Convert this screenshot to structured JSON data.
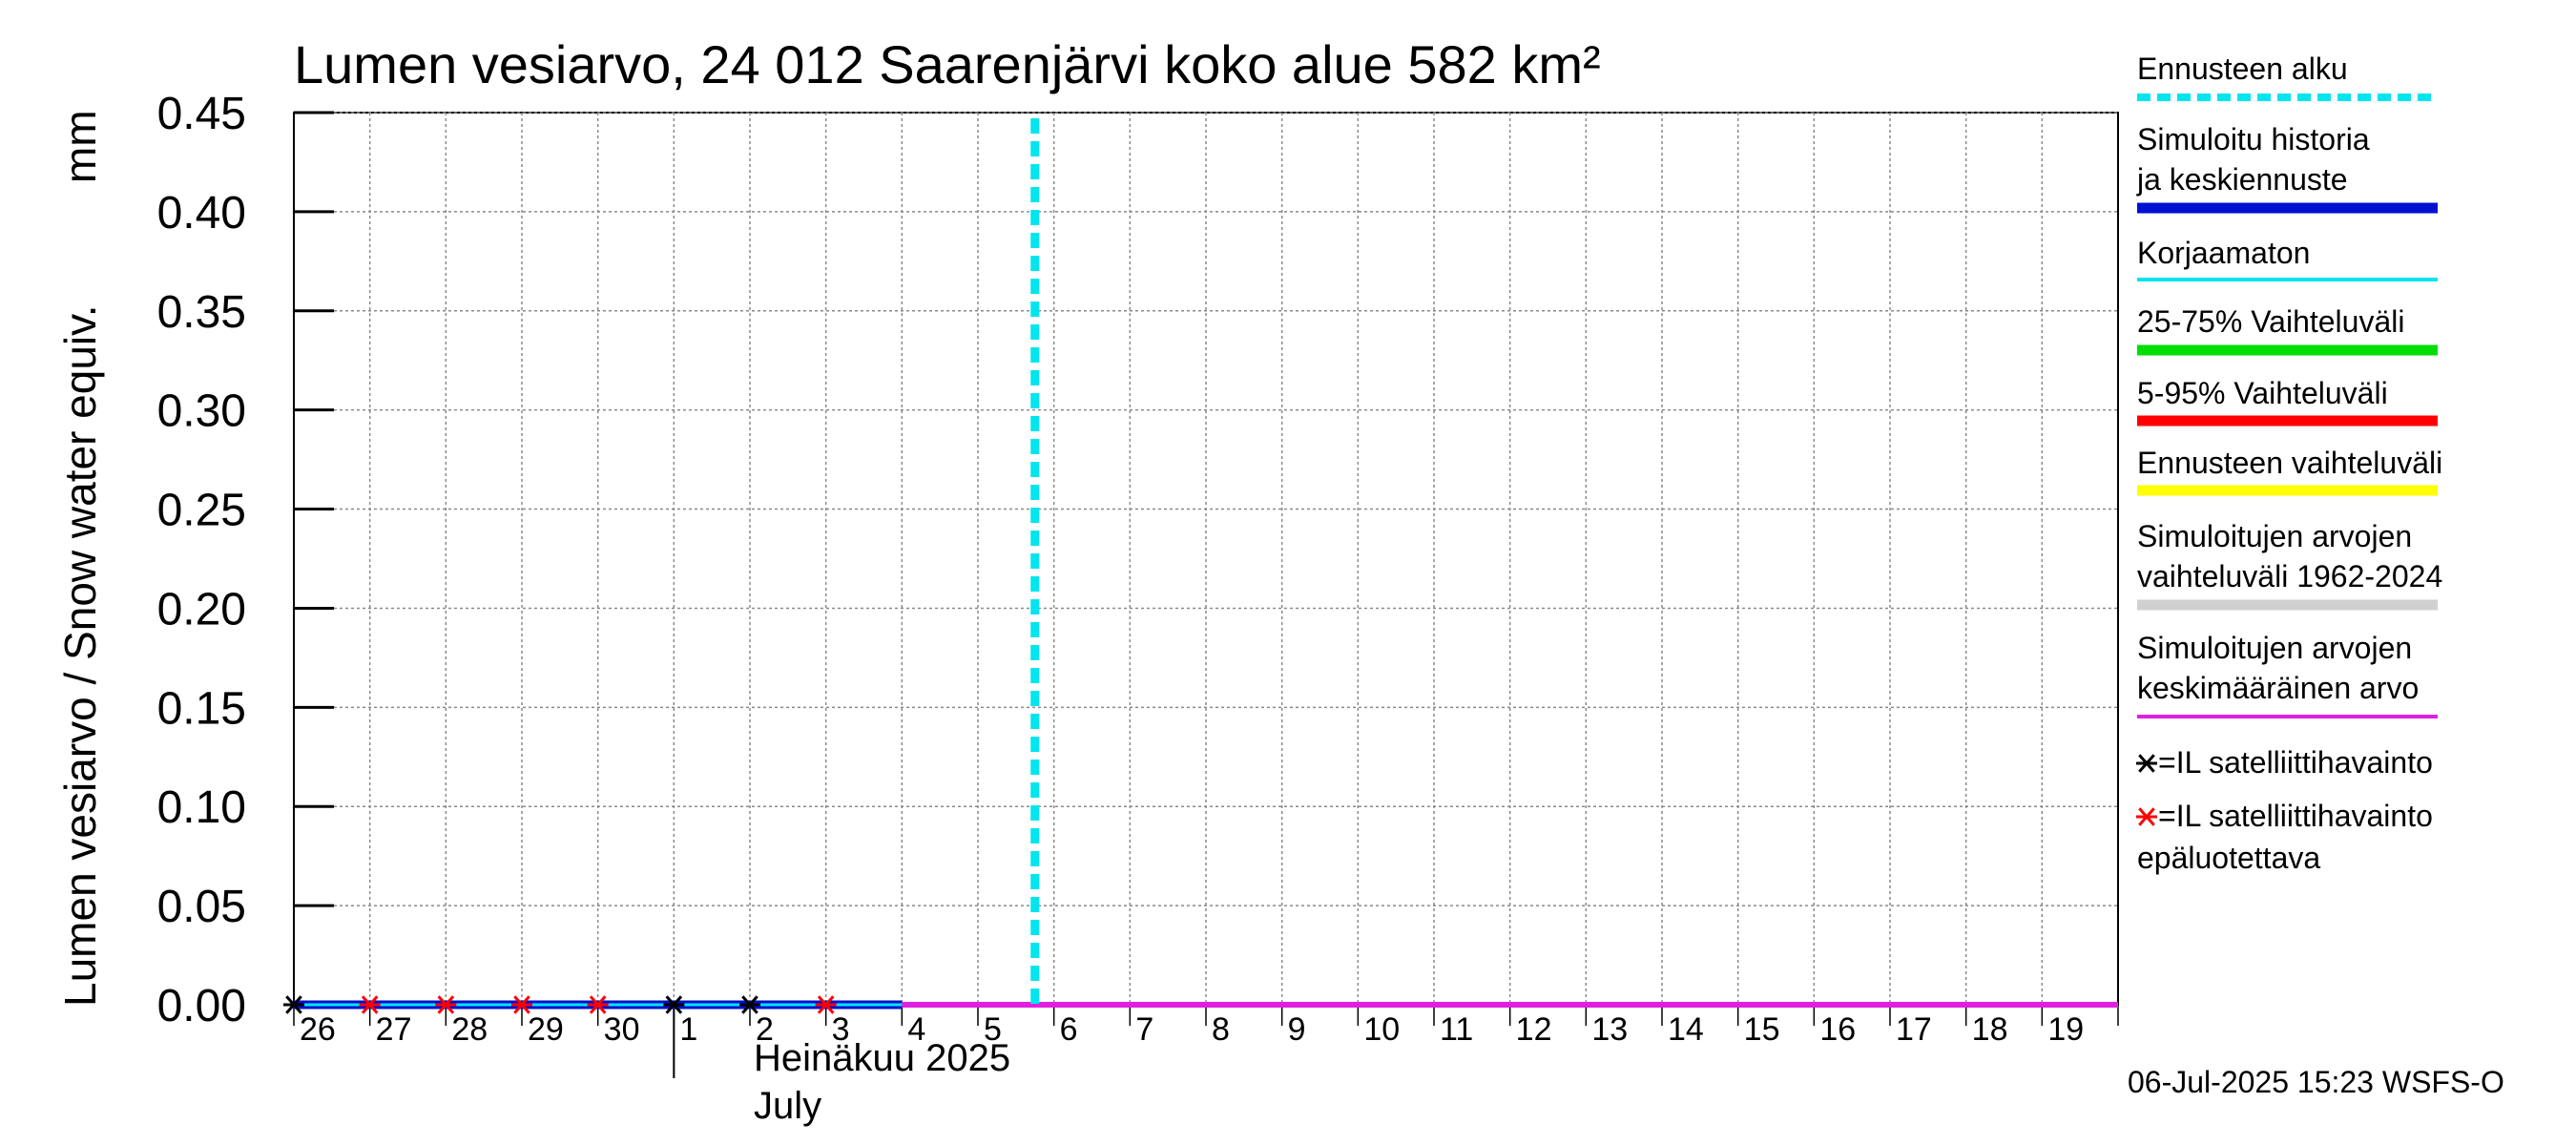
{
  "chart_data": {
    "type": "line",
    "title": "Lumen vesiarvo, 24 012 Saarenjärvi koko alue 582 km²",
    "ylabel": "Lumen vesiarvo / Snow water equiv.",
    "yunit": "mm",
    "ylim": [
      0.0,
      0.45
    ],
    "yticks": [
      "0.00",
      "0.05",
      "0.10",
      "0.15",
      "0.20",
      "0.25",
      "0.30",
      "0.35",
      "0.40",
      "0.45"
    ],
    "xlim": [
      "2025-06-26",
      "2025-07-20"
    ],
    "xtick_labels": [
      "26",
      "27",
      "28",
      "29",
      "30",
      "1",
      "2",
      "3",
      "4",
      "5",
      "6",
      "7",
      "8",
      "9",
      "10",
      "11",
      "12",
      "13",
      "14",
      "15",
      "16",
      "17",
      "18",
      "19"
    ],
    "month_label_fi": "Heinäkuu  2025",
    "month_label_en": "July",
    "grid": true,
    "forecast_start": "2025-07-06",
    "series": [
      {
        "name": "Simuloitu historia ja keskiennuste",
        "color": "#0010d0",
        "x": [
          "2025-06-26",
          "2025-07-04"
        ],
        "y": [
          0.0,
          0.0
        ]
      },
      {
        "name": "Korjaamaton",
        "color": "#00e5ee",
        "x": [
          "2025-06-26",
          "2025-07-04"
        ],
        "y": [
          0.0,
          0.0
        ]
      },
      {
        "name": "Simuloitujen arvojen keskimääräinen arvo",
        "color": "#e020e0",
        "x": [
          "2025-07-04",
          "2025-07-20"
        ],
        "y": [
          0.0,
          0.0
        ]
      }
    ],
    "observations": {
      "reliable": [
        "2025-06-26",
        "2025-07-01",
        "2025-07-02"
      ],
      "unreliable": [
        "2025-06-27",
        "2025-06-28",
        "2025-06-29",
        "2025-06-30",
        "2025-07-03"
      ],
      "value": 0.0
    },
    "legend": [
      {
        "label": "Ennusteen alku",
        "color": "#00e5ee",
        "style": "dashed"
      },
      {
        "label": "Simuloitu historia ja keskiennuste",
        "color": "#0010d0",
        "style": "thick"
      },
      {
        "label": "Korjaamaton",
        "color": "#00e5ee",
        "style": "thin"
      },
      {
        "label": "25-75% Vaihteluväli",
        "color": "#00dd00",
        "style": "thick"
      },
      {
        "label": "5-95% Vaihteluväli",
        "color": "#ff0000",
        "style": "thick"
      },
      {
        "label": "Ennusteen vaihteluväli",
        "color": "#ffff00",
        "style": "thick"
      },
      {
        "label": "Simuloitujen arvojen vaihteluväli 1962-2024",
        "color": "#d0d0d0",
        "style": "thick"
      },
      {
        "label": "Simuloitujen arvojen keskimääräinen arvo",
        "color": "#e020e0",
        "style": "thin"
      },
      {
        "label": "=IL satelliittihavainto",
        "color": "#000000",
        "style": "marker"
      },
      {
        "label": "=IL satelliittihavainto epäluotettava",
        "color": "#ff0000",
        "style": "marker"
      }
    ],
    "legend_placement": "right"
  },
  "footer": "06-Jul-2025 15:23 WSFS-O"
}
